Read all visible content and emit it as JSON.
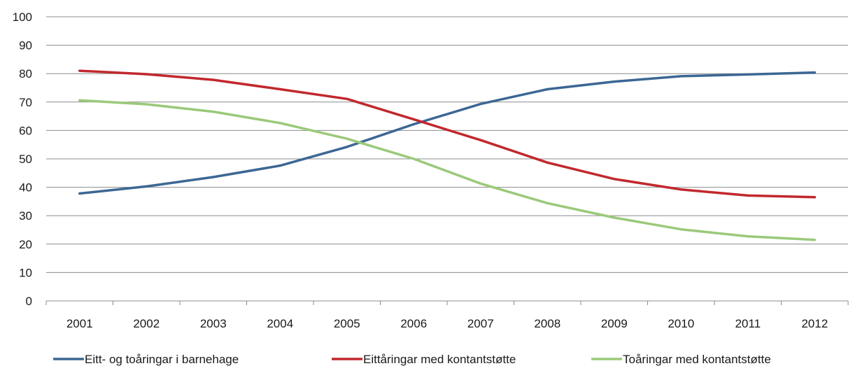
{
  "chart_data": {
    "type": "line",
    "title": "",
    "xlabel": "",
    "ylabel": "",
    "categories": [
      "2001",
      "2002",
      "2003",
      "2004",
      "2005",
      "2006",
      "2007",
      "2008",
      "2009",
      "2010",
      "2011",
      "2012"
    ],
    "ylim": [
      0,
      100
    ],
    "yticks": [
      0,
      10,
      20,
      30,
      40,
      50,
      60,
      70,
      80,
      90,
      100
    ],
    "grid": true,
    "legend_position": "bottom",
    "series": [
      {
        "name": "Eitt- og toåringar i barnehage",
        "color": "#3c6794",
        "values": [
          37.8,
          40.3,
          43.6,
          47.6,
          54.2,
          62.2,
          69.3,
          74.5,
          77.2,
          79.1,
          79.7,
          80.4
        ]
      },
      {
        "name": "Eittåringar med kontantstøtte",
        "color": "#c1282d",
        "values": [
          81.0,
          79.8,
          77.8,
          74.5,
          71.1,
          63.9,
          56.6,
          48.7,
          42.9,
          39.2,
          37.1,
          36.5
        ]
      },
      {
        "name": "Toåringar med kontantstøtte",
        "color": "#9bc97a",
        "values": [
          70.6,
          69.2,
          66.6,
          62.6,
          57.1,
          50.0,
          41.3,
          34.4,
          29.3,
          25.2,
          22.7,
          21.5
        ]
      }
    ]
  }
}
